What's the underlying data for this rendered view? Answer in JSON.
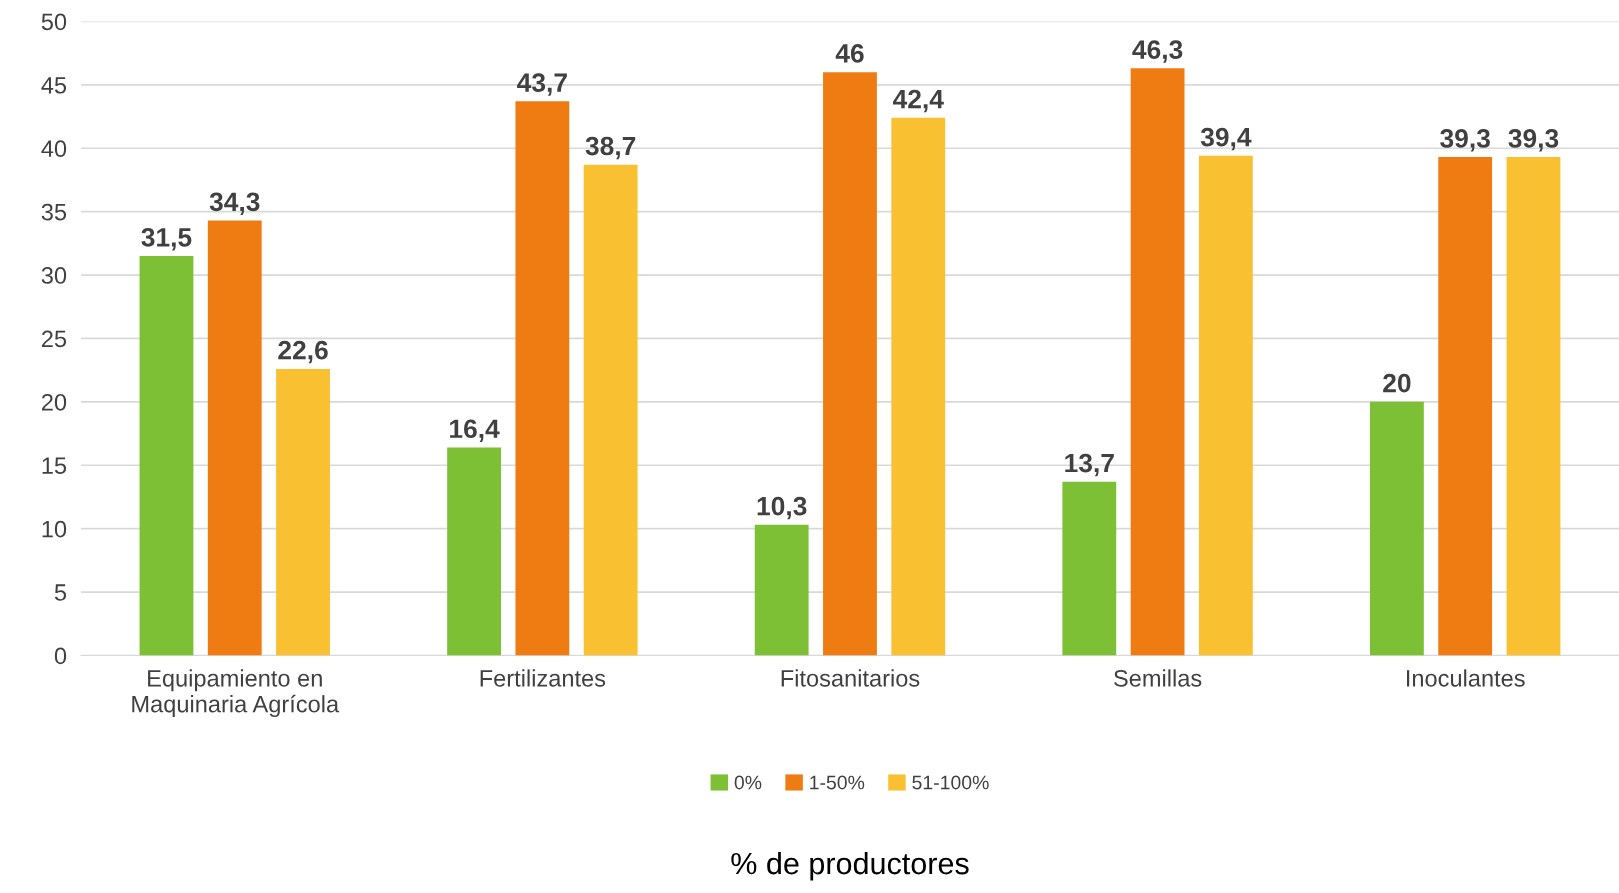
{
  "chart_data": {
    "type": "bar",
    "annotations": [
      "% de productores"
    ],
    "categories": [
      "Equipamiento en\nMaquinaria Agrícola",
      "Fertilizantes",
      "Fitosanitarios",
      "Semillas",
      "Inoculantes"
    ],
    "series": [
      {
        "name": "0%",
        "color": "#7dc036",
        "values": [
          31.5,
          16.4,
          10.3,
          13.7,
          20
        ],
        "value_labels": [
          "31,5",
          "16,4",
          "10,3",
          "13,7",
          "20"
        ]
      },
      {
        "name": "1-50%",
        "color": "#ef7c13",
        "values": [
          34.3,
          43.7,
          46,
          46.3,
          39.3
        ],
        "value_labels": [
          "34,3",
          "43,7",
          "46",
          "46,3",
          "39,3"
        ]
      },
      {
        "name": "51-100%",
        "color": "#f9c032",
        "values": [
          22.6,
          38.7,
          42.4,
          39.4,
          39.3
        ],
        "value_labels": [
          "22,6",
          "38,7",
          "42,4",
          "39,4",
          "39,3"
        ]
      }
    ],
    "ylim": [
      0,
      50
    ],
    "yticks": [
      0,
      5,
      10,
      15,
      20,
      25,
      30,
      35,
      40,
      45,
      50
    ],
    "grid": "y",
    "legend": "bottom"
  }
}
